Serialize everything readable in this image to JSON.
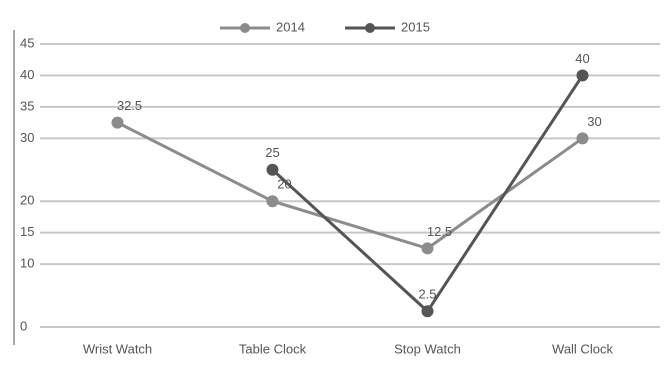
{
  "chart_data": {
    "type": "line",
    "categories": [
      "Wrist Watch",
      "Table Clock",
      "Stop Watch",
      "Wall Clock"
    ],
    "series": [
      {
        "name": "2014",
        "color": "#8c8c8c",
        "values": [
          32.5,
          20,
          12.5,
          30
        ]
      },
      {
        "name": "2015",
        "color": "#555555",
        "values": [
          null,
          25,
          2.5,
          40
        ]
      }
    ],
    "ylim": [
      0,
      45
    ],
    "yticks": [
      0,
      10,
      15,
      20,
      30,
      35,
      40,
      45
    ],
    "grid": true,
    "legend": "top"
  }
}
